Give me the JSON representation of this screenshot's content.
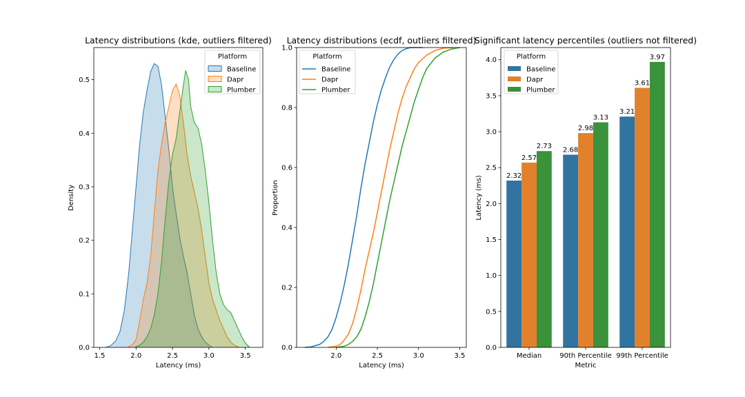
{
  "palette": {
    "Baseline": "#1f77b4",
    "Dapr": "#ff7f0e",
    "Plumber": "#2ca02c"
  },
  "bar_palette": {
    "Baseline": "#3274a1",
    "Dapr": "#e1812c",
    "Plumber": "#3a923a"
  },
  "chart_data": [
    {
      "type": "area",
      "title": "Latency distributions (kde, outliers filtered)",
      "xlabel": "Latency (ms)",
      "ylabel": "Density",
      "xlim": [
        1.42,
        3.74
      ],
      "ylim": [
        0,
        0.56
      ],
      "xticks": [
        1.5,
        2.0,
        2.5,
        3.0,
        3.5
      ],
      "xtick_labels": [
        "1.5",
        "2.0",
        "2.5",
        "3.0",
        "3.5"
      ],
      "yticks": [
        0,
        0.1,
        0.2,
        0.3,
        0.4,
        0.5
      ],
      "ytick_labels": [
        "0.0",
        "0.1",
        "0.2",
        "0.3",
        "0.4",
        "0.5"
      ],
      "legend": {
        "title": "Platform",
        "position": "top-right"
      },
      "series": [
        {
          "name": "Baseline",
          "points": [
            [
              1.58,
              0
            ],
            [
              1.65,
              0.003
            ],
            [
              1.72,
              0.012
            ],
            [
              1.78,
              0.03
            ],
            [
              1.84,
              0.07
            ],
            [
              1.9,
              0.14
            ],
            [
              1.95,
              0.22
            ],
            [
              2.0,
              0.3
            ],
            [
              2.05,
              0.38
            ],
            [
              2.1,
              0.44
            ],
            [
              2.15,
              0.48
            ],
            [
              2.2,
              0.515
            ],
            [
              2.25,
              0.53
            ],
            [
              2.3,
              0.525
            ],
            [
              2.35,
              0.49
            ],
            [
              2.4,
              0.43
            ],
            [
              2.45,
              0.37
            ],
            [
              2.5,
              0.3
            ],
            [
              2.55,
              0.25
            ],
            [
              2.6,
              0.205
            ],
            [
              2.65,
              0.17
            ],
            [
              2.7,
              0.14
            ],
            [
              2.75,
              0.1
            ],
            [
              2.8,
              0.06
            ],
            [
              2.85,
              0.035
            ],
            [
              2.9,
              0.02
            ],
            [
              2.95,
              0.01
            ],
            [
              3.0,
              0.004
            ],
            [
              3.05,
              0
            ]
          ]
        },
        {
          "name": "Dapr",
          "points": [
            [
              1.88,
              0
            ],
            [
              1.95,
              0.005
            ],
            [
              2.0,
              0.015
            ],
            [
              2.05,
              0.05
            ],
            [
              2.1,
              0.09
            ],
            [
              2.15,
              0.12
            ],
            [
              2.2,
              0.17
            ],
            [
              2.25,
              0.25
            ],
            [
              2.3,
              0.33
            ],
            [
              2.35,
              0.38
            ],
            [
              2.4,
              0.42
            ],
            [
              2.45,
              0.45
            ],
            [
              2.5,
              0.48
            ],
            [
              2.55,
              0.492
            ],
            [
              2.6,
              0.47
            ],
            [
              2.65,
              0.42
            ],
            [
              2.7,
              0.36
            ],
            [
              2.75,
              0.32
            ],
            [
              2.8,
              0.29
            ],
            [
              2.85,
              0.26
            ],
            [
              2.9,
              0.22
            ],
            [
              2.95,
              0.17
            ],
            [
              3.0,
              0.12
            ],
            [
              3.05,
              0.09
            ],
            [
              3.1,
              0.07
            ],
            [
              3.15,
              0.05
            ],
            [
              3.2,
              0.035
            ],
            [
              3.25,
              0.02
            ],
            [
              3.3,
              0.01
            ],
            [
              3.35,
              0.004
            ],
            [
              3.42,
              0
            ]
          ]
        },
        {
          "name": "Plumber",
          "points": [
            [
              1.98,
              0
            ],
            [
              2.05,
              0.004
            ],
            [
              2.1,
              0.01
            ],
            [
              2.15,
              0.02
            ],
            [
              2.2,
              0.035
            ],
            [
              2.25,
              0.06
            ],
            [
              2.3,
              0.1
            ],
            [
              2.35,
              0.16
            ],
            [
              2.4,
              0.24
            ],
            [
              2.45,
              0.31
            ],
            [
              2.5,
              0.36
            ],
            [
              2.55,
              0.39
            ],
            [
              2.6,
              0.44
            ],
            [
              2.65,
              0.49
            ],
            [
              2.68,
              0.517
            ],
            [
              2.72,
              0.5
            ],
            [
              2.75,
              0.45
            ],
            [
              2.8,
              0.42
            ],
            [
              2.85,
              0.41
            ],
            [
              2.9,
              0.38
            ],
            [
              2.95,
              0.33
            ],
            [
              3.0,
              0.27
            ],
            [
              3.05,
              0.2
            ],
            [
              3.1,
              0.14
            ],
            [
              3.15,
              0.1
            ],
            [
              3.2,
              0.08
            ],
            [
              3.25,
              0.07
            ],
            [
              3.3,
              0.065
            ],
            [
              3.35,
              0.05
            ],
            [
              3.4,
              0.035
            ],
            [
              3.45,
              0.02
            ],
            [
              3.5,
              0.008
            ],
            [
              3.56,
              0
            ]
          ]
        }
      ]
    },
    {
      "type": "line",
      "title": "Latency distributions (ecdf, outliers filtered)",
      "xlabel": "Latency (ms)",
      "ylabel": "Proportion",
      "xlim": [
        1.52,
        3.58
      ],
      "ylim": [
        0,
        1.0
      ],
      "xticks": [
        2.0,
        2.5,
        3.0,
        3.5
      ],
      "xtick_labels": [
        "2.0",
        "2.5",
        "3.0",
        "3.5"
      ],
      "yticks": [
        0,
        0.2,
        0.4,
        0.6,
        0.8,
        1.0
      ],
      "ytick_labels": [
        "0.0",
        "0.2",
        "0.4",
        "0.6",
        "0.8",
        "1.0"
      ],
      "legend": {
        "title": "Platform",
        "position": "top-left"
      },
      "series": [
        {
          "name": "Baseline",
          "points": [
            [
              1.62,
              0
            ],
            [
              1.7,
              0.002
            ],
            [
              1.8,
              0.01
            ],
            [
              1.85,
              0.02
            ],
            [
              1.9,
              0.035
            ],
            [
              1.95,
              0.06
            ],
            [
              2.0,
              0.1
            ],
            [
              2.05,
              0.15
            ],
            [
              2.1,
              0.21
            ],
            [
              2.15,
              0.28
            ],
            [
              2.2,
              0.36
            ],
            [
              2.25,
              0.44
            ],
            [
              2.3,
              0.53
            ],
            [
              2.35,
              0.61
            ],
            [
              2.4,
              0.68
            ],
            [
              2.45,
              0.75
            ],
            [
              2.5,
              0.81
            ],
            [
              2.55,
              0.86
            ],
            [
              2.6,
              0.9
            ],
            [
              2.65,
              0.935
            ],
            [
              2.7,
              0.96
            ],
            [
              2.75,
              0.978
            ],
            [
              2.8,
              0.99
            ],
            [
              2.85,
              0.996
            ],
            [
              2.9,
              1.0
            ],
            [
              3.05,
              1.0
            ]
          ]
        },
        {
          "name": "Dapr",
          "points": [
            [
              1.9,
              0
            ],
            [
              2.0,
              0.004
            ],
            [
              2.05,
              0.01
            ],
            [
              2.1,
              0.025
            ],
            [
              2.15,
              0.045
            ],
            [
              2.2,
              0.08
            ],
            [
              2.25,
              0.13
            ],
            [
              2.3,
              0.19
            ],
            [
              2.35,
              0.26
            ],
            [
              2.4,
              0.32
            ],
            [
              2.45,
              0.38
            ],
            [
              2.5,
              0.45
            ],
            [
              2.55,
              0.52
            ],
            [
              2.6,
              0.59
            ],
            [
              2.65,
              0.66
            ],
            [
              2.7,
              0.72
            ],
            [
              2.75,
              0.78
            ],
            [
              2.8,
              0.83
            ],
            [
              2.85,
              0.87
            ],
            [
              2.9,
              0.9
            ],
            [
              2.95,
              0.93
            ],
            [
              3.0,
              0.95
            ],
            [
              3.1,
              0.975
            ],
            [
              3.2,
              0.99
            ],
            [
              3.3,
              0.998
            ],
            [
              3.42,
              1.0
            ]
          ]
        },
        {
          "name": "Plumber",
          "points": [
            [
              2.0,
              0
            ],
            [
              2.1,
              0.004
            ],
            [
              2.15,
              0.01
            ],
            [
              2.2,
              0.02
            ],
            [
              2.25,
              0.035
            ],
            [
              2.3,
              0.06
            ],
            [
              2.35,
              0.1
            ],
            [
              2.4,
              0.15
            ],
            [
              2.45,
              0.21
            ],
            [
              2.5,
              0.28
            ],
            [
              2.55,
              0.35
            ],
            [
              2.6,
              0.42
            ],
            [
              2.65,
              0.49
            ],
            [
              2.7,
              0.55
            ],
            [
              2.75,
              0.61
            ],
            [
              2.8,
              0.67
            ],
            [
              2.85,
              0.72
            ],
            [
              2.9,
              0.77
            ],
            [
              2.95,
              0.82
            ],
            [
              3.0,
              0.86
            ],
            [
              3.05,
              0.9
            ],
            [
              3.1,
              0.93
            ],
            [
              3.2,
              0.965
            ],
            [
              3.3,
              0.985
            ],
            [
              3.4,
              0.995
            ],
            [
              3.5,
              1.0
            ]
          ]
        }
      ]
    },
    {
      "type": "bar",
      "title": "Significant latency percentiles (outliers not filtered)",
      "xlabel": "Metric",
      "ylabel": "Latency (ms)",
      "ylim": [
        0,
        4.17
      ],
      "categories": [
        "Median",
        "90th Percentile",
        "99th Percentile"
      ],
      "yticks": [
        0,
        0.5,
        1.0,
        1.5,
        2.0,
        2.5,
        3.0,
        3.5,
        4.0
      ],
      "ytick_labels": [
        "0.0",
        "0.5",
        "1.0",
        "1.5",
        "2.0",
        "2.5",
        "3.0",
        "3.5",
        "4.0"
      ],
      "legend": {
        "title": "Platform",
        "position": "top-left"
      },
      "series": [
        {
          "name": "Baseline",
          "values": [
            2.32,
            2.68,
            3.21
          ],
          "labels": [
            "2.32",
            "2.68",
            "3.21"
          ]
        },
        {
          "name": "Dapr",
          "values": [
            2.57,
            2.98,
            3.61
          ],
          "labels": [
            "2.57",
            "2.98",
            "3.61"
          ]
        },
        {
          "name": "Plumber",
          "values": [
            2.73,
            3.13,
            3.97
          ],
          "labels": [
            "2.73",
            "3.13",
            "3.97"
          ]
        }
      ]
    }
  ]
}
